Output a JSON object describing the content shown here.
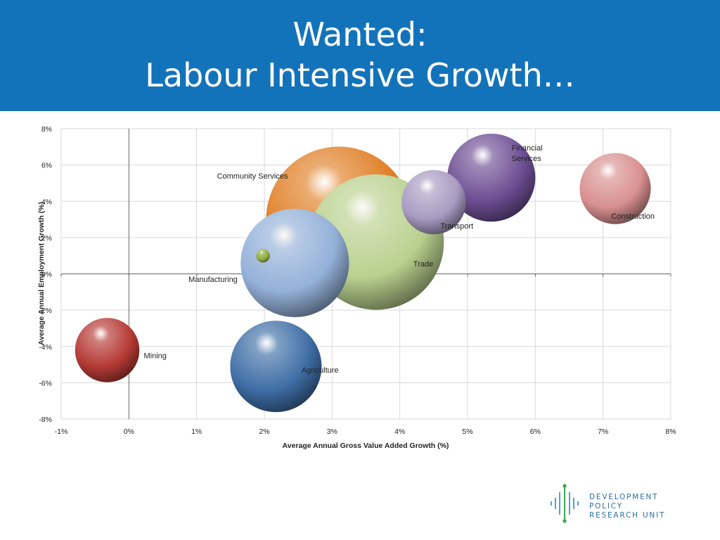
{
  "slide": {
    "title_line1": "Wanted:",
    "title_line2": "Labour Intensive Growth…"
  },
  "chart_data": {
    "type": "scatter",
    "subtype": "bubble",
    "title": "",
    "xlabel": "Average Annual Gross Value Added Growth (%)",
    "ylabel": "Average Annual Employment Growth (%)",
    "xlim": [
      -1,
      8
    ],
    "ylim": [
      -8,
      8
    ],
    "x_ticks": [
      "-1%",
      "0%",
      "1%",
      "2%",
      "3%",
      "4%",
      "5%",
      "6%",
      "7%",
      "8%"
    ],
    "y_ticks": [
      "8%",
      "6%",
      "4%",
      "2%",
      "0%",
      "-2%",
      "-4%",
      "-6%",
      "-8%"
    ],
    "grid": true,
    "legend": "none",
    "series": [
      {
        "label": "Mining",
        "x": -0.32,
        "y": -4.2,
        "size": 0.95,
        "color": "#b53a35"
      },
      {
        "label": "Agriculture",
        "x": 2.17,
        "y": -5.1,
        "size": 1.35,
        "color": "#3f6ea6"
      },
      {
        "label": "Manufacturing",
        "x": 1.98,
        "y": 1.0,
        "size": 0.2,
        "color": "#8fae3c"
      },
      {
        "label": "Community Services",
        "x": 3.1,
        "y": 3.0,
        "size": 2.15,
        "color": "#e07f26"
      },
      {
        "label": "Trade",
        "x": 3.65,
        "y": 1.75,
        "size": 2.0,
        "color": "#b9d18f"
      },
      {
        "label": "Transport",
        "x": 4.5,
        "y": 3.95,
        "size": 0.95,
        "color": "#a99bc2"
      },
      {
        "label": "Financial Services",
        "x": 5.35,
        "y": 5.3,
        "size": 1.3,
        "color": "#6e4e94"
      },
      {
        "label": "Construction",
        "x": 7.18,
        "y": 4.7,
        "size": 1.05,
        "color": "#d99090"
      },
      {
        "label": "",
        "x": 2.45,
        "y": 0.6,
        "size": 1.6,
        "color": "#94b1d9"
      }
    ]
  },
  "logo": {
    "line1": "Development Policy",
    "line2": "Research Unit"
  }
}
